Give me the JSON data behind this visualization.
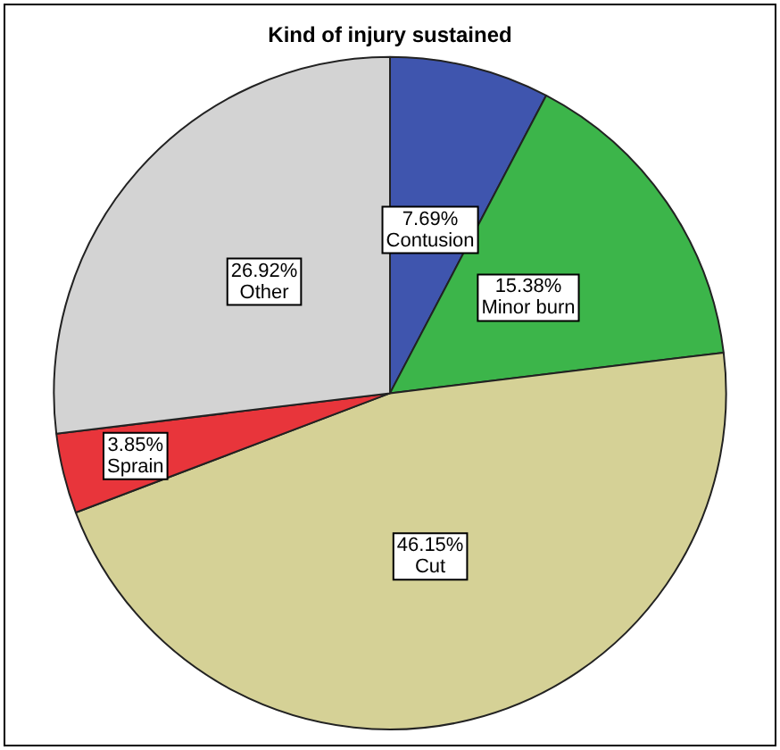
{
  "chart_data": {
    "type": "pie",
    "title": "Kind of injury sustained",
    "categories": [
      "Contusion",
      "Minor burn",
      "Cut",
      "Sprain",
      "Other"
    ],
    "values": [
      7.69,
      15.38,
      46.15,
      3.85,
      26.92
    ],
    "value_labels": [
      "7.69%",
      "15.38%",
      "46.15%",
      "3.85%",
      "26.92%"
    ],
    "colors": [
      "#3f55ae",
      "#3cb54a",
      "#d5d196",
      "#e8353b",
      "#d3d3d3"
    ],
    "legend": false
  }
}
